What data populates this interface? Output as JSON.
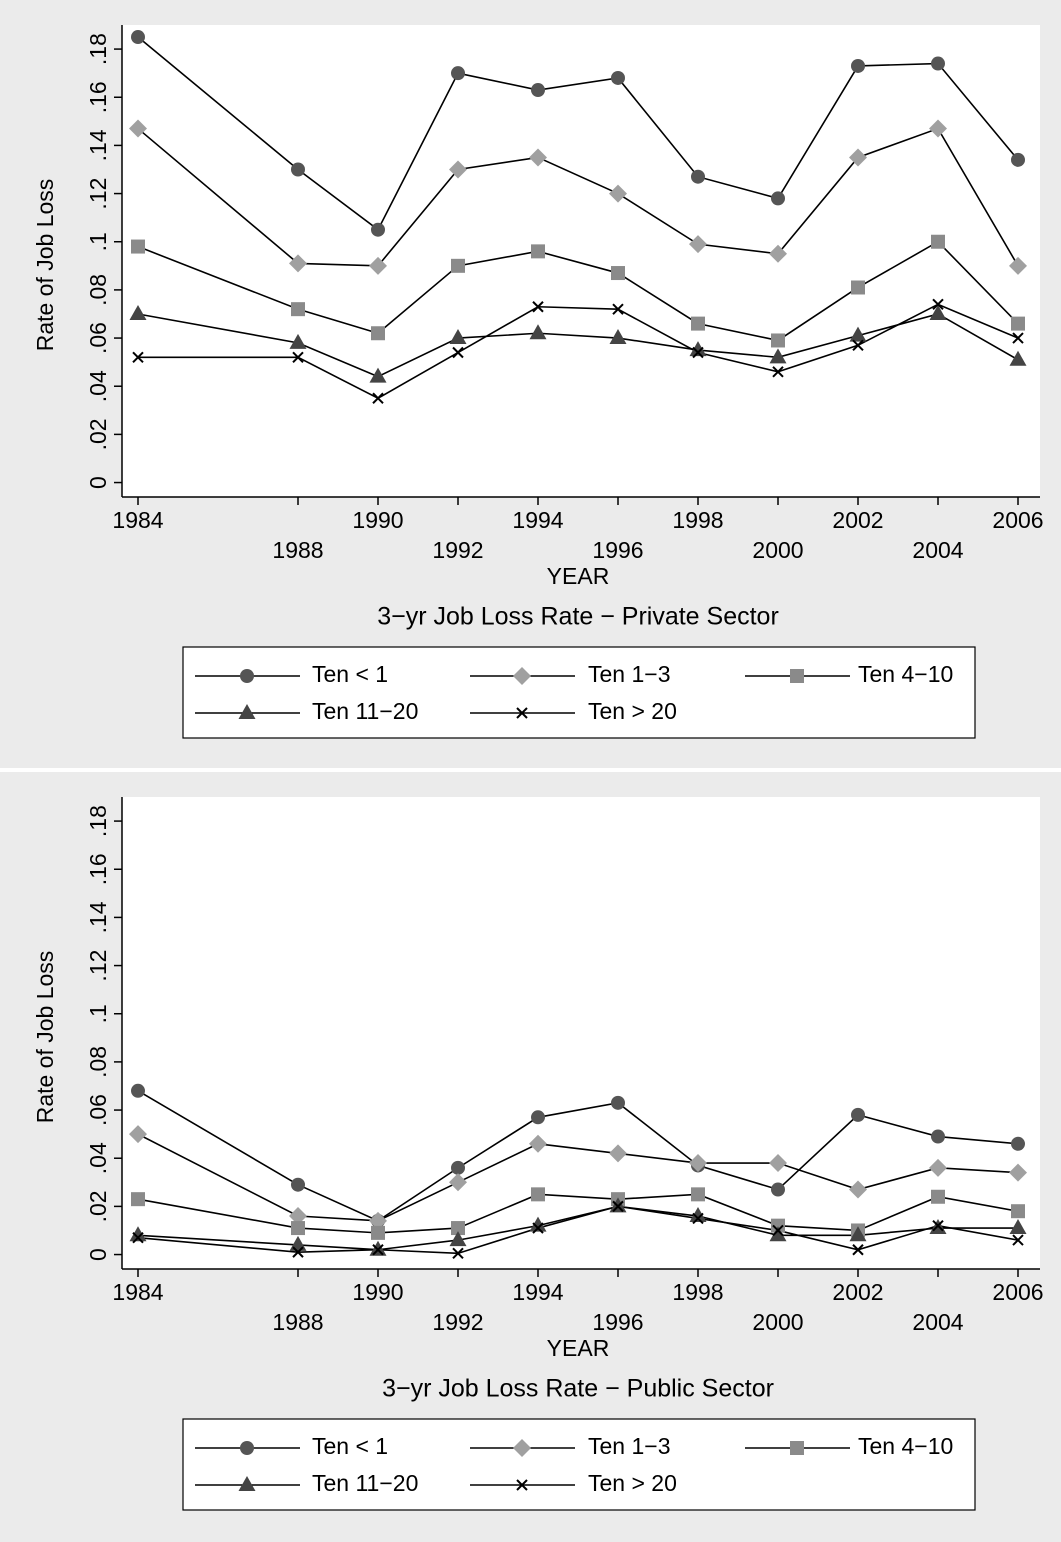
{
  "chart_data": [
    {
      "type": "line",
      "title": "3−yr Job Loss Rate − Private Sector",
      "xlabel": "YEAR",
      "ylabel": "Rate of Job Loss",
      "x": [
        1984,
        1988,
        1990,
        1992,
        1994,
        1996,
        1998,
        2000,
        2002,
        2004,
        2006
      ],
      "xlim": [
        1983.6,
        2006.55
      ],
      "xticks": [
        1984,
        1988,
        1990,
        1992,
        1994,
        1996,
        1998,
        2000,
        2002,
        2004,
        2006
      ],
      "ylim": [
        -0.006,
        0.19
      ],
      "yticks": [
        0,
        {
          "value": 0.02,
          "label": ".02"
        },
        {
          "value": 0.04,
          "label": ".04"
        },
        {
          "value": 0.06,
          "label": ".06"
        },
        {
          "value": 0.08,
          "label": ".08"
        },
        {
          "value": 0.1,
          "label": ".1"
        },
        {
          "value": 0.12,
          "label": ".12"
        },
        {
          "value": 0.14,
          "label": ".14"
        },
        {
          "value": 0.16,
          "label": ".16"
        },
        {
          "value": 0.18,
          "label": ".18"
        }
      ],
      "line_color": "#000000",
      "series": [
        {
          "name": "Ten < 1",
          "color": "#555555",
          "marker": "circle",
          "values": [
            0.185,
            0.13,
            0.105,
            0.17,
            0.163,
            0.168,
            0.127,
            0.118,
            0.173,
            0.174,
            0.134
          ]
        },
        {
          "name": "Ten 1−3",
          "color": "#a0a0a0",
          "marker": "diamond",
          "values": [
            0.147,
            0.091,
            0.09,
            0.13,
            0.135,
            0.12,
            0.099,
            0.095,
            0.135,
            0.147,
            0.09
          ]
        },
        {
          "name": "Ten 4−10",
          "color": "#8a8a8a",
          "marker": "square",
          "values": [
            0.098,
            0.072,
            0.062,
            0.09,
            0.096,
            0.087,
            0.066,
            0.059,
            0.081,
            0.1,
            0.066
          ]
        },
        {
          "name": "Ten 11−20",
          "color": "#444444",
          "marker": "triangle",
          "values": [
            0.07,
            0.058,
            0.044,
            0.06,
            0.062,
            0.06,
            0.055,
            0.052,
            0.061,
            0.07,
            0.051
          ]
        },
        {
          "name": "Ten > 20",
          "color": "#000000",
          "marker": "x",
          "values": [
            0.052,
            0.052,
            0.035,
            0.054,
            0.073,
            0.072,
            0.054,
            0.046,
            0.057,
            0.074,
            0.06
          ]
        }
      ]
    },
    {
      "type": "line",
      "title": "3−yr Job Loss Rate − Public Sector",
      "xlabel": "YEAR",
      "ylabel": "Rate of Job Loss",
      "x": [
        1984,
        1988,
        1990,
        1992,
        1994,
        1996,
        1998,
        2000,
        2002,
        2004,
        2006
      ],
      "xlim": [
        1983.6,
        2006.55
      ],
      "xticks": [
        1984,
        1988,
        1990,
        1992,
        1994,
        1996,
        1998,
        2000,
        2002,
        2004,
        2006
      ],
      "ylim": [
        -0.006,
        0.19
      ],
      "yticks": [
        0,
        {
          "value": 0.02,
          "label": ".02"
        },
        {
          "value": 0.04,
          "label": ".04"
        },
        {
          "value": 0.06,
          "label": ".06"
        },
        {
          "value": 0.08,
          "label": ".08"
        },
        {
          "value": 0.1,
          "label": ".1"
        },
        {
          "value": 0.12,
          "label": ".12"
        },
        {
          "value": 0.14,
          "label": ".14"
        },
        {
          "value": 0.16,
          "label": ".16"
        },
        {
          "value": 0.18,
          "label": ".18"
        }
      ],
      "line_color": "#000000",
      "series": [
        {
          "name": "Ten < 1",
          "color": "#555555",
          "marker": "circle",
          "values": [
            0.068,
            0.029,
            0.014,
            0.036,
            0.057,
            0.063,
            0.037,
            0.027,
            0.058,
            0.049,
            0.046
          ]
        },
        {
          "name": "Ten 1−3",
          "color": "#a0a0a0",
          "marker": "diamond",
          "values": [
            0.05,
            0.016,
            0.014,
            0.03,
            0.046,
            0.042,
            0.038,
            0.038,
            0.027,
            0.036,
            0.034
          ]
        },
        {
          "name": "Ten 4−10",
          "color": "#8a8a8a",
          "marker": "square",
          "values": [
            0.023,
            0.011,
            0.009,
            0.011,
            0.025,
            0.023,
            0.025,
            0.012,
            0.01,
            0.024,
            0.018
          ]
        },
        {
          "name": "Ten 11−20",
          "color": "#444444",
          "marker": "triangle",
          "values": [
            0.008,
            0.004,
            0.002,
            0.006,
            0.012,
            0.02,
            0.016,
            0.008,
            0.008,
            0.011,
            0.011
          ]
        },
        {
          "name": "Ten > 20",
          "color": "#000000",
          "marker": "x",
          "values": [
            0.007,
            0.001,
            0.002,
            0.0005,
            0.011,
            0.02,
            0.015,
            0.01,
            0.002,
            0.012,
            0.006
          ]
        }
      ]
    }
  ]
}
